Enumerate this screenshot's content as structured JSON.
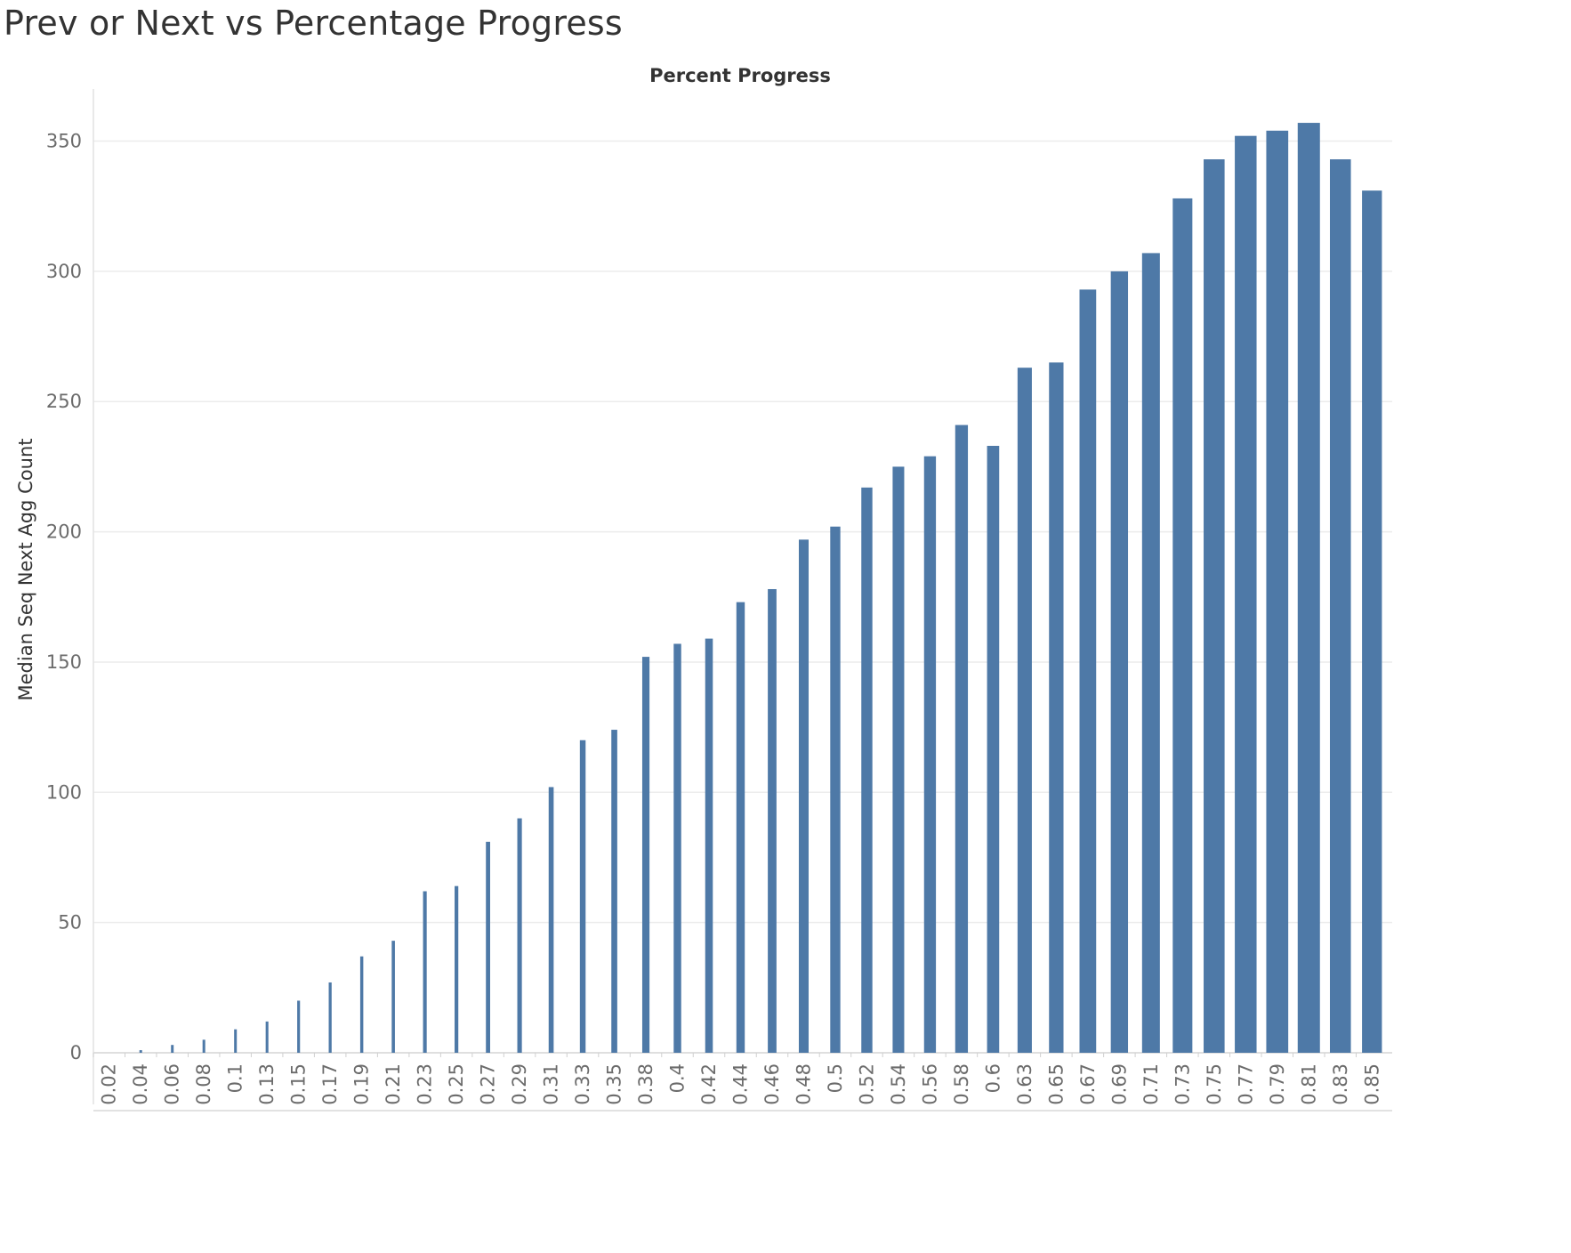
{
  "title": "Prev or Next vs Percentage Progress",
  "chart_data": {
    "type": "bar",
    "title": "Prev or Next vs Percentage Progress",
    "xlabel": "Percent Progress",
    "ylabel": "Median Seq Next Agg Count",
    "ylim": [
      0,
      370
    ],
    "yticks": [
      0,
      50,
      100,
      150,
      200,
      250,
      300,
      350
    ],
    "grid": true,
    "x_axis_position": "top",
    "bar_color": "#4e79a7",
    "categories": [
      "0.02",
      "0.04",
      "0.06",
      "0.08",
      "0.1",
      "0.13",
      "0.15",
      "0.17",
      "0.19",
      "0.21",
      "0.23",
      "0.25",
      "0.27",
      "0.29",
      "0.31",
      "0.33",
      "0.35",
      "0.38",
      "0.4",
      "0.42",
      "0.44",
      "0.46",
      "0.48",
      "0.5",
      "0.52",
      "0.54",
      "0.56",
      "0.58",
      "0.6",
      "0.63",
      "0.65",
      "0.67",
      "0.69",
      "0.71",
      "0.73",
      "0.75",
      "0.77",
      "0.79",
      "0.81",
      "0.83",
      "0.85"
    ],
    "values": [
      0,
      1,
      3,
      5,
      9,
      12,
      20,
      27,
      37,
      43,
      62,
      64,
      81,
      90,
      102,
      120,
      124,
      152,
      157,
      159,
      173,
      178,
      197,
      202,
      217,
      225,
      229,
      241,
      233,
      263,
      265,
      293,
      300,
      307,
      328,
      343,
      352,
      354,
      357,
      343,
      331
    ]
  }
}
